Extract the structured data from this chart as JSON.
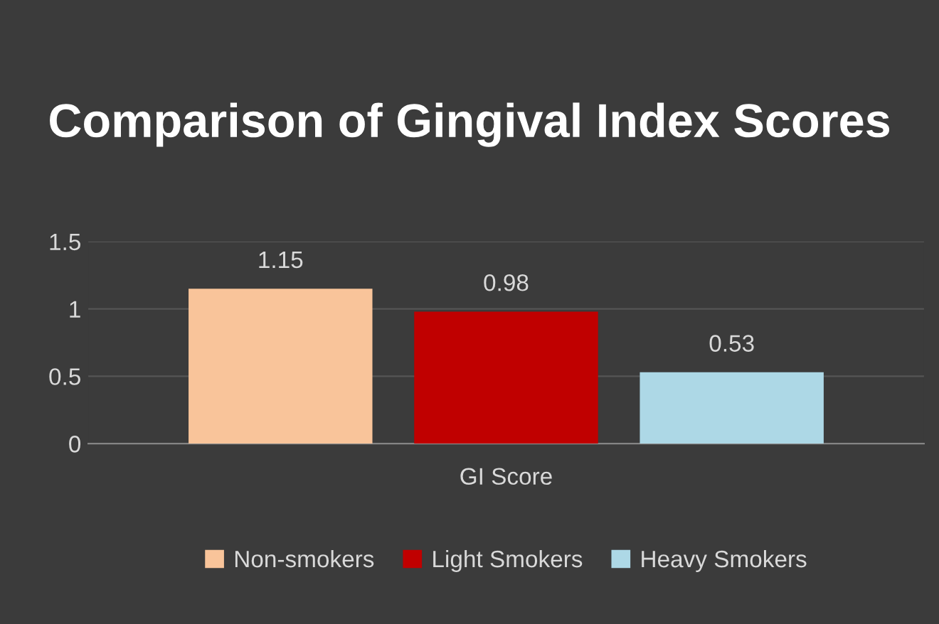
{
  "chart_data": {
    "type": "bar",
    "title": "Comparison of Gingival Index Scores",
    "categories": [
      "GI Score"
    ],
    "series": [
      {
        "name": "Non-smokers",
        "color": "#f9c49a",
        "values": [
          1.15
        ]
      },
      {
        "name": "Light Smokers",
        "color": "#c00000",
        "values": [
          0.98
        ]
      },
      {
        "name": "Heavy Smokers",
        "color": "#add8e6",
        "values": [
          0.53
        ]
      }
    ],
    "ylim": [
      0,
      1.5
    ],
    "yticks": [
      0,
      0.5,
      1,
      1.5
    ],
    "grid": "y",
    "legend": "bottom",
    "data_labels": true
  }
}
